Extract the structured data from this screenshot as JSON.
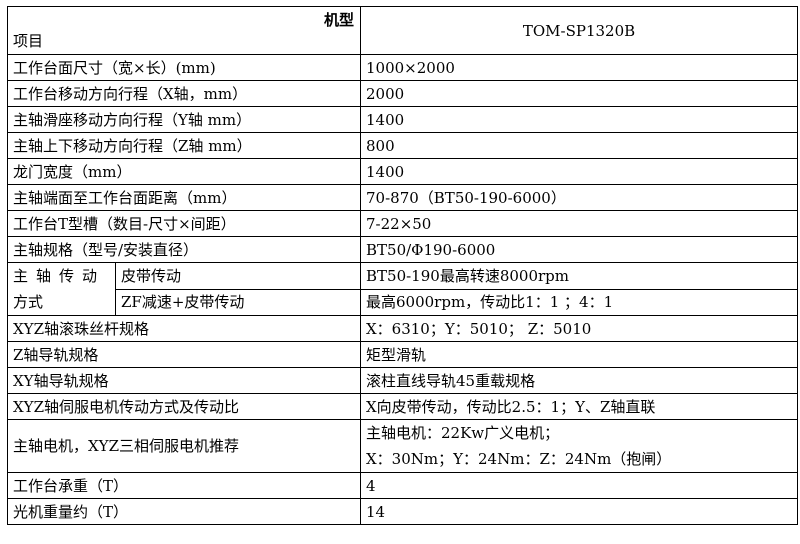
{
  "header": {
    "model_label": "机型",
    "item_label": "项目",
    "model_value": "TOM-SP1320B"
  },
  "rows": [
    {
      "label": "工作台面尺寸（宽×长）(mm)",
      "value": "1000×2000"
    },
    {
      "label": "工作台移动方向行程（X轴，mm）",
      "value": "2000"
    },
    {
      "label": "主轴滑座移动方向行程（Y轴 mm）",
      "value": "1400"
    },
    {
      "label": "主轴上下移动方向行程（Z轴 mm）",
      "value": "800"
    },
    {
      "label": "龙门宽度（mm）",
      "value": "1400"
    },
    {
      "label": "主轴端面至工作台面距离（mm）",
      "value": "70-870（BT50-190-6000）"
    },
    {
      "label": "工作台T型槽（数目-尺寸×间距）",
      "value": "7-22×50"
    },
    {
      "label": "主轴规格（型号/安装直径）",
      "value": "BT50/Φ190-6000"
    }
  ],
  "drive": {
    "label_line1": "主轴传动",
    "label_line2": "方式",
    "sub": [
      {
        "label": "皮带传动",
        "value": "BT50-190最高转速8000rpm"
      },
      {
        "label": "ZF减速+皮带传动",
        "value": "最高6000rpm，传动比1：1  ；4：1"
      }
    ]
  },
  "rows2": [
    {
      "label": "XYZ轴滚珠丝杆规格",
      "value": "X：6310；Y：5010；  Z：5010"
    },
    {
      "label": "Z轴导轨规格",
      "value": "矩型滑轨"
    },
    {
      "label": "XY轴导轨规格",
      "value": "滚柱直线导轨45重载规格"
    },
    {
      "label": "XYZ轴伺服电机传动方式及传动比",
      "value": "X向皮带传动，传动比2.5：1；Y、Z轴直联"
    }
  ],
  "motor": {
    "label": "主轴电机，XYZ三相伺服电机推荐",
    "value_line1": "主轴电机：22Kw广义电机；",
    "value_line2": "X：30Nm；Y：24Nm：Z：24Nm（抱闸）"
  },
  "rows3": [
    {
      "label": "工作台承重（T）",
      "value": "4"
    },
    {
      "label": "光机重量约（T）",
      "value": "14"
    }
  ]
}
